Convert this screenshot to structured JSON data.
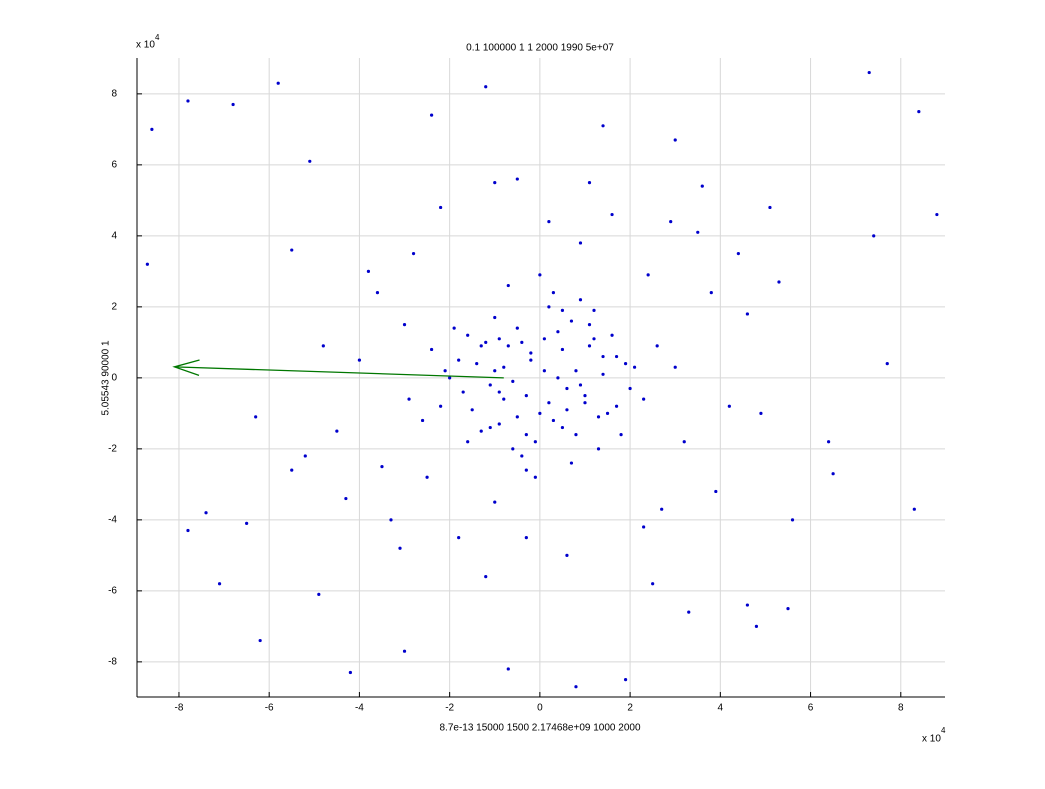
{
  "chart_data": {
    "type": "scatter",
    "title": "0.1 100000 1 1 2000 1990 5e+07",
    "xlabel": "8.7e-13 15000 1500 2.17468e+09 1000 2000",
    "ylabel": "5.05543 90000 1",
    "x_multiplier": {
      "base": "x 10",
      "exponent": "4"
    },
    "y_multiplier": {
      "base": "x 10",
      "exponent": "4"
    },
    "xlim": [
      -8.93,
      8.98
    ],
    "ylim": [
      -8.99,
      9.01
    ],
    "xticks": [
      -8,
      -6,
      -4,
      -2,
      0,
      2,
      4,
      6,
      8
    ],
    "yticks": [
      -8,
      -6,
      -4,
      -2,
      0,
      2,
      4,
      6,
      8
    ],
    "grid": true,
    "color": "#0000cc",
    "x": [
      0.1,
      -0.3,
      0.5,
      -0.8,
      1.0,
      -1.2,
      0.3,
      -0.5,
      1.4,
      -1.5,
      0.7,
      -0.1,
      0.9,
      -0.9,
      1.7,
      -1.8,
      0.2,
      -0.4,
      1.2,
      -1.1,
      0.6,
      -0.7,
      2.0,
      -2.1,
      0.0,
      0.4,
      -0.2,
      1.1,
      -1.3,
      0.8,
      -0.6,
      1.5,
      -1.6,
      0.3,
      -0.3,
      1.9,
      -2.2,
      0.5,
      -1.0,
      1.3,
      -0.2,
      0.6,
      -0.9,
      1.1,
      -1.4,
      0.2,
      -0.6,
      0.9,
      -1.7,
      1.6,
      -0.4,
      0.4,
      -1.1,
      1.3,
      -2.4,
      2.3,
      -0.1,
      0.7,
      -0.7,
      1.0,
      -1.9,
      1.8,
      -0.5,
      0.1,
      -1.3,
      1.4,
      -2.6,
      2.6,
      -0.8,
      0.5,
      -0.3,
      0.8,
      -1.6,
      1.7,
      -2.0,
      2.1,
      0.0,
      -1.0,
      1.2,
      -0.9,
      -3.0,
      3.2,
      -3.5,
      3.8,
      -2.8,
      2.7,
      -4.0,
      4.2,
      -3.3,
      3.5,
      -2.5,
      2.4,
      -4.5,
      4.6,
      -3.8,
      3.9,
      -1.8,
      1.6,
      -0.5,
      0.6,
      -1.2,
      1.1,
      -2.2,
      2.3,
      -4.8,
      4.9,
      -3.1,
      2.9,
      -5.2,
      5.3,
      -1.0,
      0.9,
      -2.9,
      3.0,
      -4.3,
      4.4,
      -0.3,
      0.2,
      -5.5,
      5.6,
      -8.6,
      -7.8,
      -6.8,
      -5.8,
      -6.3,
      -8.7,
      -7.4,
      -6.2,
      -5.1,
      -4.2,
      -3.0,
      -1.2,
      0.8,
      1.9,
      3.3,
      4.6,
      5.5,
      7.3,
      8.4,
      8.8,
      -7.1,
      -6.5,
      -4.9,
      -2.4,
      -1.0,
      1.4,
      3.0,
      4.8,
      6.5,
      7.7,
      -7.8,
      -5.5,
      -3.6,
      -0.7,
      2.5,
      3.6,
      5.1,
      6.4,
      7.4,
      8.3
    ],
    "y": [
      0.2,
      -0.5,
      0.8,
      0.3,
      -0.7,
      1.0,
      -1.2,
      1.4,
      0.1,
      -0.9,
      1.6,
      -1.8,
      -0.2,
      -0.4,
      0.6,
      0.5,
      2.0,
      -2.2,
      1.1,
      -1.4,
      -0.9,
      0.9,
      -0.3,
      0.2,
      -1.0,
      0.0,
      0.7,
      1.5,
      -1.5,
      -1.6,
      -0.1,
      -1.0,
      1.2,
      2.4,
      -2.6,
      0.4,
      -0.8,
      1.9,
      1.7,
      -2.0,
      0.5,
      -0.3,
      -1.3,
      0.9,
      0.4,
      -0.7,
      -2.0,
      2.2,
      -0.4,
      1.2,
      1.0,
      1.3,
      -0.2,
      -1.1,
      0.8,
      -0.6,
      -2.8,
      -2.4,
      2.6,
      -0.5,
      1.4,
      -1.6,
      -1.1,
      1.1,
      0.9,
      0.6,
      -1.2,
      0.9,
      -0.6,
      -1.4,
      -1.6,
      0.2,
      -1.8,
      -0.8,
      0.0,
      0.3,
      2.9,
      0.2,
      1.9,
      1.1,
      1.5,
      -1.8,
      -2.5,
      2.4,
      3.5,
      -3.7,
      0.5,
      -0.8,
      -4.0,
      4.1,
      -2.8,
      2.9,
      -1.5,
      1.8,
      3.0,
      -3.2,
      -4.5,
      4.6,
      5.6,
      -5.0,
      -5.6,
      5.5,
      4.8,
      -4.2,
      0.9,
      -1.0,
      -4.8,
      4.4,
      -2.2,
      2.7,
      -3.5,
      3.8,
      -0.6,
      0.3,
      -3.4,
      3.5,
      -4.5,
      4.4,
      3.6,
      -4.0,
      7.0,
      7.8,
      7.7,
      8.3,
      -1.1,
      3.2,
      -3.8,
      -7.4,
      6.1,
      -8.3,
      -7.7,
      8.2,
      -8.7,
      -8.5,
      -6.6,
      -6.4,
      -6.5,
      8.6,
      7.5,
      4.6,
      -5.8,
      -4.1,
      -6.1,
      7.4,
      5.5,
      7.1,
      6.7,
      -7.0,
      -2.7,
      0.4,
      -4.3,
      -2.6,
      2.4,
      -8.2,
      -5.8,
      5.4,
      4.8,
      -1.8,
      4.0,
      -3.7
    ],
    "arrow": {
      "x": [
        -0.8,
        -8.1
      ],
      "y": [
        0,
        0.31
      ],
      "color": "#007700"
    }
  }
}
